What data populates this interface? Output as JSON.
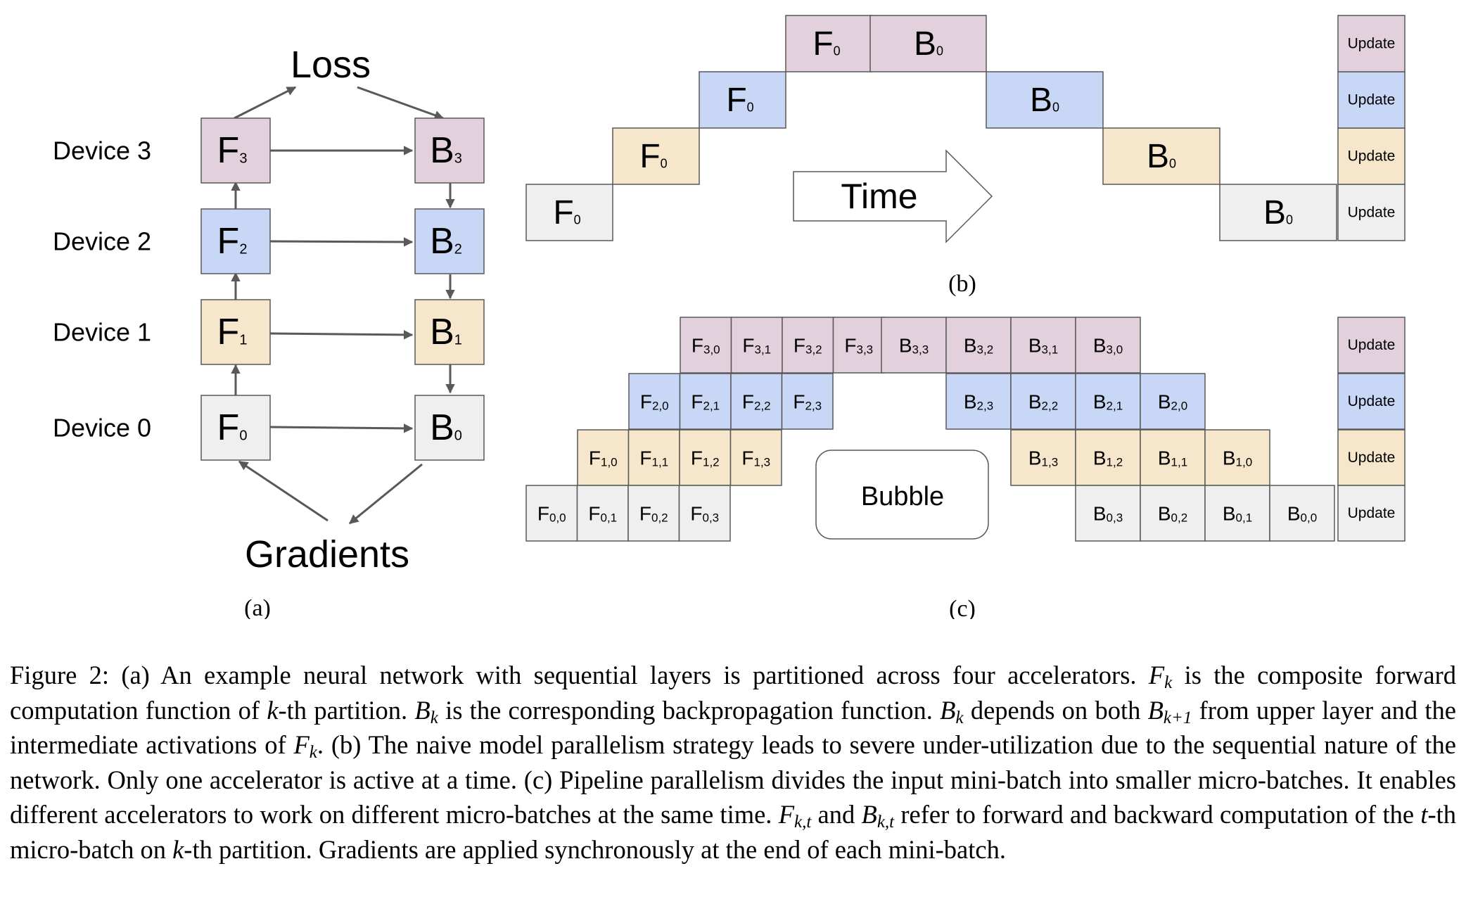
{
  "colors": {
    "device_0": "#efefef",
    "device_1": "#f6e6cb",
    "device_2": "#c9d7f7",
    "device_3": "#e2d0dc",
    "stroke": "#595959"
  },
  "panel_a": {
    "loss_label": "Loss",
    "gradients_label": "Gradients",
    "caption": "(a)",
    "devices": [
      {
        "label": "Device 0",
        "forward": "F",
        "backward": "B",
        "index": "0"
      },
      {
        "label": "Device 1",
        "forward": "F",
        "backward": "B",
        "index": "1"
      },
      {
        "label": "Device 2",
        "forward": "F",
        "backward": "B",
        "index": "2"
      },
      {
        "label": "Device 3",
        "forward": "F",
        "backward": "B",
        "index": "3"
      }
    ]
  },
  "panel_b": {
    "caption": "(b)",
    "time_label": "Time",
    "forward_label": "F",
    "backward_label": "B",
    "subscript": "0",
    "update_label": "Update"
  },
  "panel_c": {
    "caption": "(c)",
    "bubble_label": "Bubble",
    "update_label": "Update",
    "rows": [
      {
        "device": 3,
        "forward": [
          "3,0",
          "3,1",
          "3,2",
          "3,3"
        ],
        "backward": [
          "3,3",
          "3,2",
          "3,1",
          "3,0"
        ]
      },
      {
        "device": 2,
        "forward": [
          "2,0",
          "2,1",
          "2,2",
          "2,3"
        ],
        "backward": [
          "2,3",
          "2,2",
          "2,1",
          "2,0"
        ]
      },
      {
        "device": 1,
        "forward": [
          "1,0",
          "1,1",
          "1,2",
          "1,3"
        ],
        "backward": [
          "1,3",
          "1,2",
          "1,1",
          "1,0"
        ]
      },
      {
        "device": 0,
        "forward": [
          "0,0",
          "0,1",
          "0,2",
          "0,3"
        ],
        "backward": [
          "0,3",
          "0,2",
          "0,1",
          "0,0"
        ]
      }
    ]
  },
  "caption": {
    "s1": "Figure 2: (a) An example neural network with sequential layers is partitioned across four accelerators. ",
    "fk_1": "F",
    "fk_1_sub": "k",
    "s2": " is the composite forward computation function of ",
    "k_1": "k",
    "s3": "-th partition. ",
    "bk_1": "B",
    "bk_1_sub": "k",
    "s4": " is the corresponding backpropagation function. ",
    "bk_2": "B",
    "bk_2_sub": "k",
    "s5": " depends on both ",
    "bk1": "B",
    "bk1_sub": "k+1",
    "s6": " from upper layer and the intermediate activations of ",
    "fk_2": "F",
    "fk_2_sub": "k",
    "s7": ". (b) The naive model parallelism strategy leads to severe under-utilization due to the sequential nature of the network. Only one accelerator is active at a time. (c) Pipeline parallelism divides the input mini-batch into smaller micro-batches. It enables different accelerators to work on different micro-batches at the same time. ",
    "fkt": "F",
    "fkt_sub": "k,t",
    "s8": " and ",
    "bkt": "B",
    "bkt_sub": "k,t",
    "s9": " refer to forward and backward computation of the ",
    "t": "t",
    "s10": "-th micro-batch on ",
    "k_2": "k",
    "s11": "-th partition. Gradients are applied synchronously at the end of each mini-batch."
  }
}
